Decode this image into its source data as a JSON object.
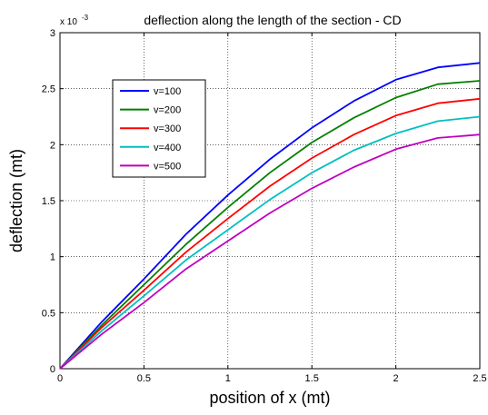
{
  "chart_data": {
    "type": "line",
    "title": "deflection along the length of the section - CD",
    "xlabel": "position of x (mt)",
    "ylabel": "deflection (mt)",
    "y_multiplier_label": "x 10",
    "y_multiplier_exponent": "-3",
    "xlim": [
      0,
      2.5
    ],
    "ylim": [
      0,
      3
    ],
    "xticks": [
      0,
      0.5,
      1,
      1.5,
      2,
      2.5
    ],
    "xtick_labels": [
      "0",
      "0.5",
      "1",
      "1.5",
      "2",
      "2.5"
    ],
    "yticks": [
      0,
      0.5,
      1,
      1.5,
      2,
      2.5,
      3
    ],
    "ytick_labels": [
      "0",
      "0.5",
      "1",
      "1.5",
      "2",
      "2.5",
      "3"
    ],
    "grid": true,
    "legend_position": "top-left",
    "x": [
      0,
      0.25,
      0.5,
      0.75,
      1.0,
      1.25,
      1.5,
      1.75,
      2.0,
      2.25,
      2.5
    ],
    "series": [
      {
        "name": "v=100",
        "color": "#0000ff",
        "values": [
          0.0,
          0.42,
          0.8,
          1.2,
          1.55,
          1.87,
          2.15,
          2.39,
          2.58,
          2.69,
          2.73
        ]
      },
      {
        "name": "v=200",
        "color": "#007f00",
        "values": [
          0.0,
          0.39,
          0.75,
          1.11,
          1.44,
          1.75,
          2.02,
          2.24,
          2.42,
          2.54,
          2.57
        ]
      },
      {
        "name": "v=300",
        "color": "#ff0000",
        "values": [
          0.0,
          0.37,
          0.7,
          1.04,
          1.34,
          1.63,
          1.88,
          2.09,
          2.26,
          2.37,
          2.41
        ]
      },
      {
        "name": "v=400",
        "color": "#00bfbf",
        "values": [
          0.0,
          0.34,
          0.65,
          0.97,
          1.24,
          1.51,
          1.75,
          1.95,
          2.1,
          2.21,
          2.25
        ]
      },
      {
        "name": "v=500",
        "color": "#bf00bf",
        "values": [
          0.0,
          0.31,
          0.59,
          0.89,
          1.14,
          1.39,
          1.61,
          1.8,
          1.96,
          2.06,
          2.09
        ]
      }
    ]
  }
}
